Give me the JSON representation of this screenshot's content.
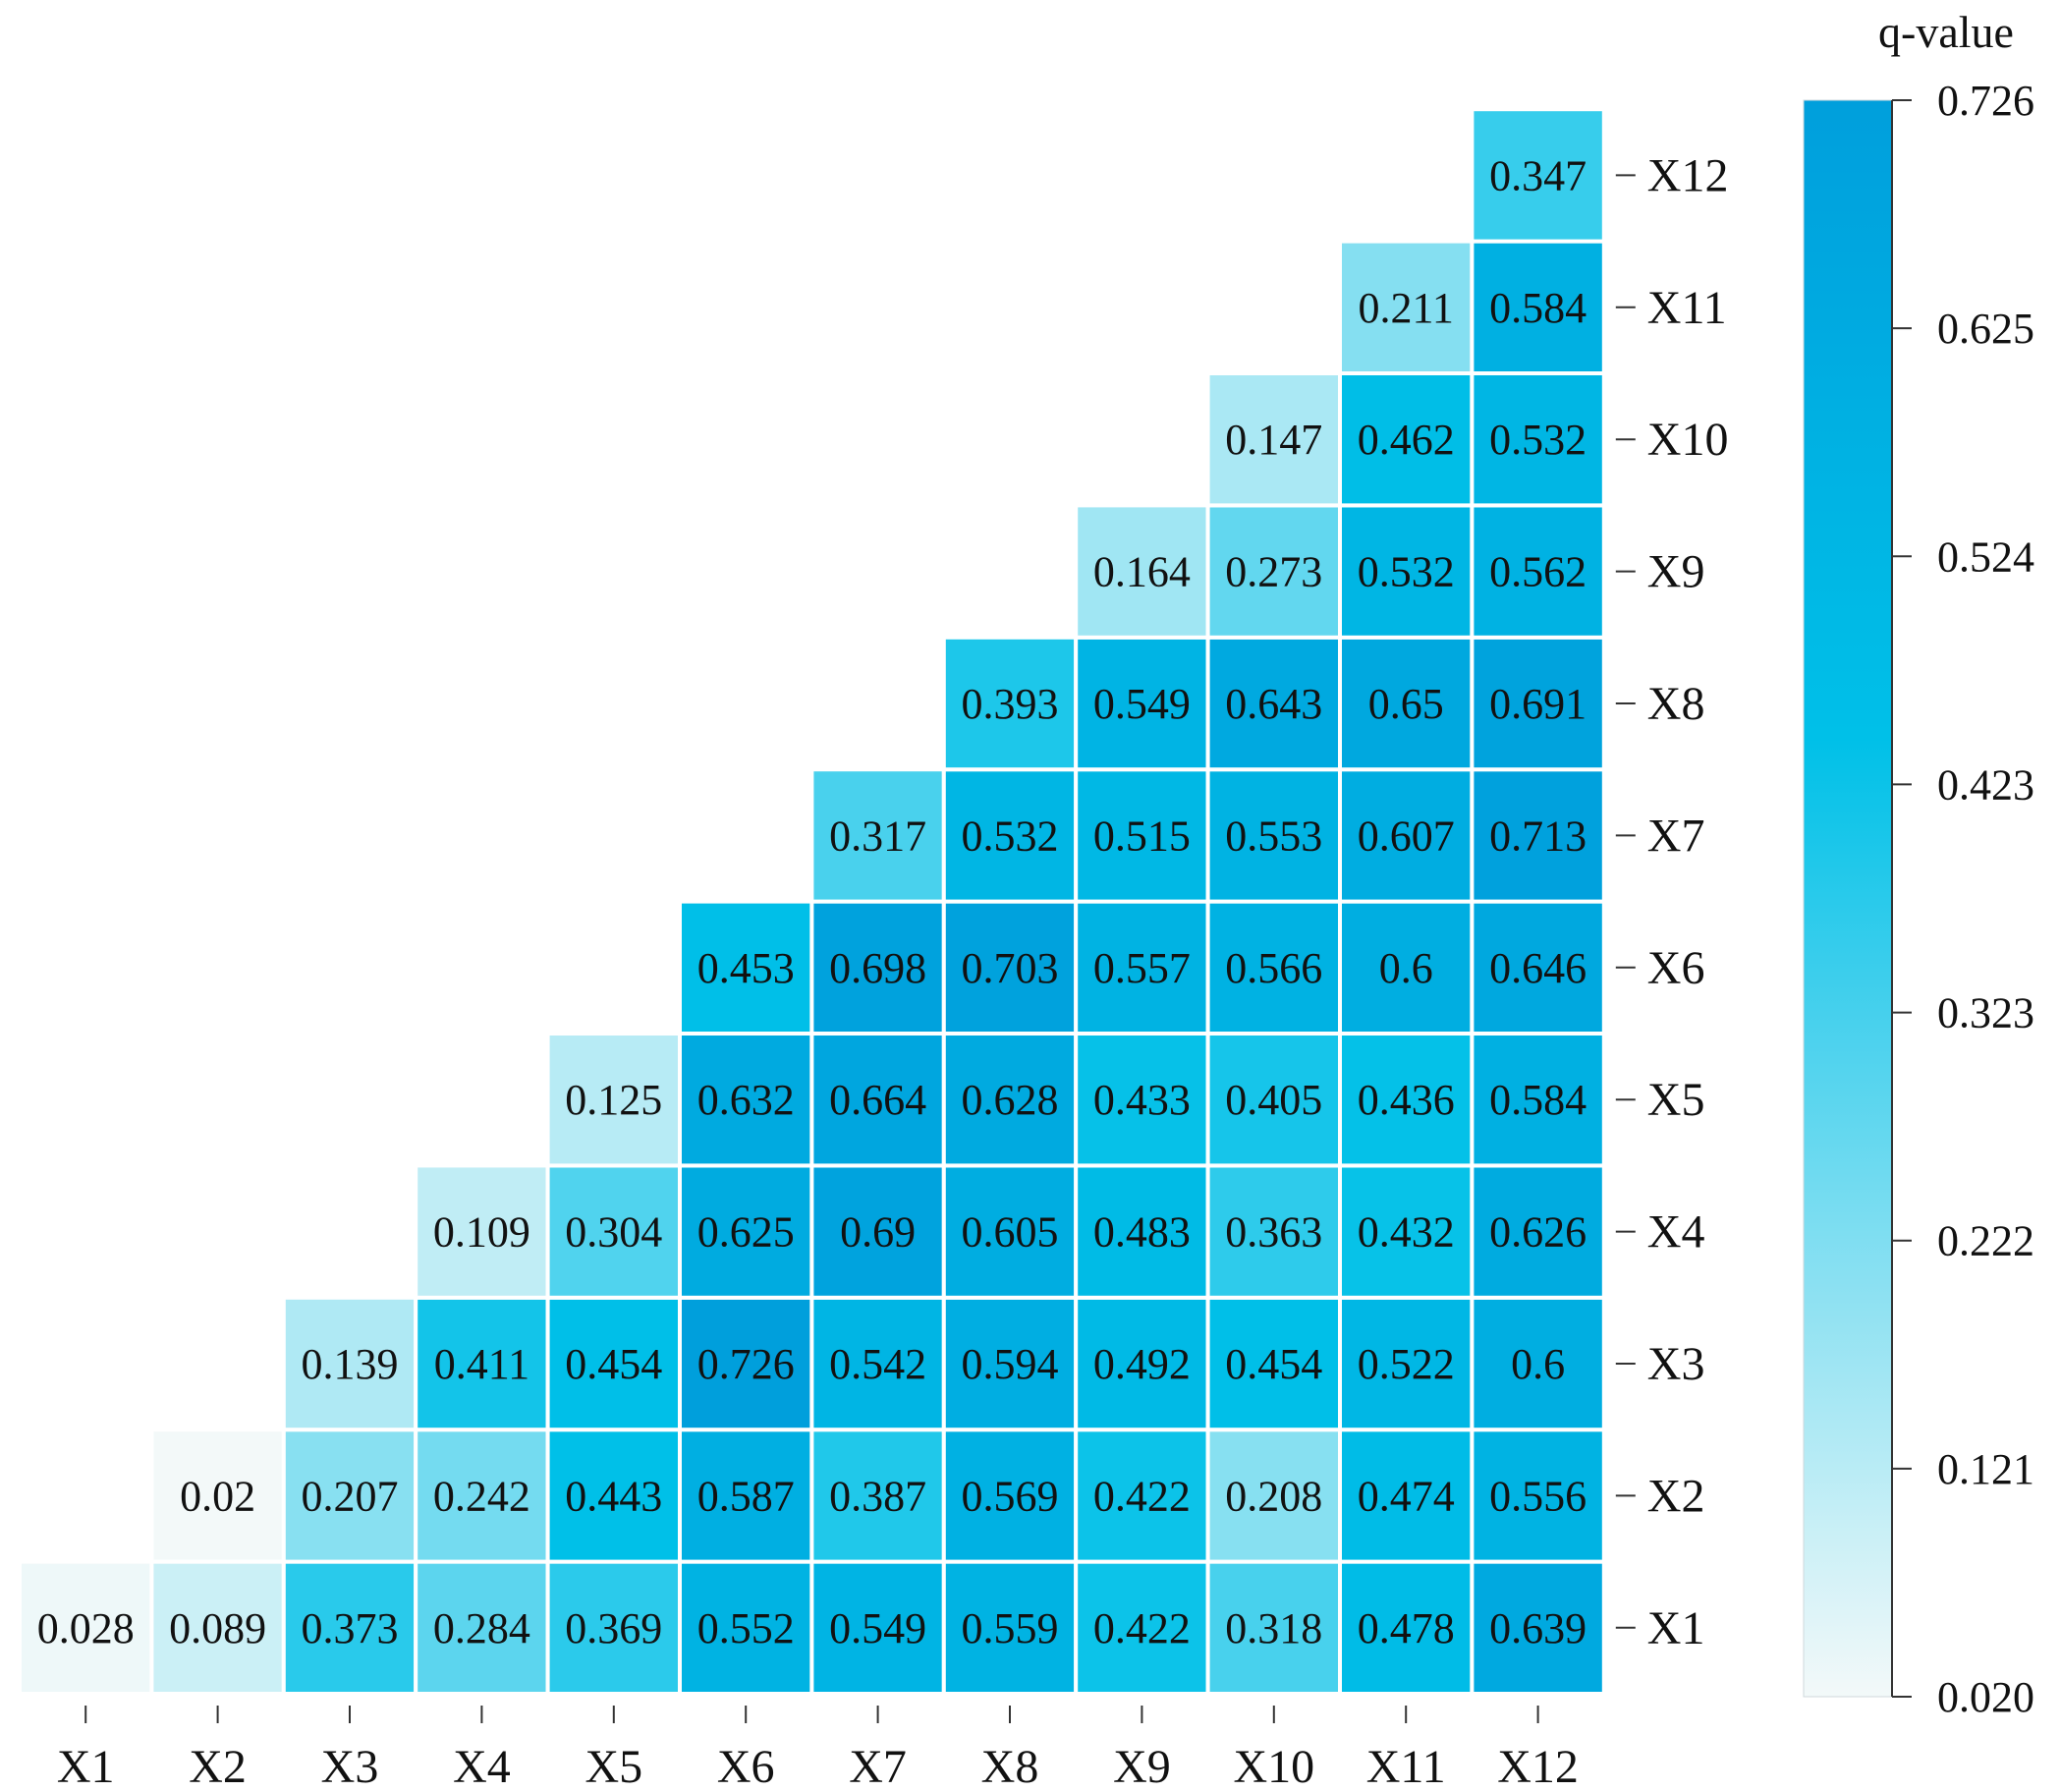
{
  "chart_data": {
    "type": "heatmap",
    "title": "",
    "xlabel": "",
    "ylabel": "",
    "x_categories": [
      "X1",
      "X2",
      "X3",
      "X4",
      "X5",
      "X6",
      "X7",
      "X8",
      "X9",
      "X10",
      "X11",
      "X12"
    ],
    "y_categories": [
      "X1",
      "X2",
      "X3",
      "X4",
      "X5",
      "X6",
      "X7",
      "X8",
      "X9",
      "X10",
      "X11",
      "X12"
    ],
    "triangle": "upper",
    "values": [
      {
        "row": "X1",
        "values": [
          0.028,
          0.089,
          0.373,
          0.284,
          0.369,
          0.552,
          0.549,
          0.559,
          0.422,
          0.318,
          0.478,
          0.639
        ]
      },
      {
        "row": "X2",
        "values": [
          null,
          0.02,
          0.207,
          0.242,
          0.443,
          0.587,
          0.387,
          0.569,
          0.422,
          0.208,
          0.474,
          0.556
        ]
      },
      {
        "row": "X3",
        "values": [
          null,
          null,
          0.139,
          0.411,
          0.454,
          0.726,
          0.542,
          0.594,
          0.492,
          0.454,
          0.522,
          0.6
        ]
      },
      {
        "row": "X4",
        "values": [
          null,
          null,
          null,
          0.109,
          0.304,
          0.625,
          0.69,
          0.605,
          0.483,
          0.363,
          0.432,
          0.626
        ]
      },
      {
        "row": "X5",
        "values": [
          null,
          null,
          null,
          null,
          0.125,
          0.632,
          0.664,
          0.628,
          0.433,
          0.405,
          0.436,
          0.584
        ]
      },
      {
        "row": "X6",
        "values": [
          null,
          null,
          null,
          null,
          null,
          0.453,
          0.698,
          0.703,
          0.557,
          0.566,
          0.6,
          0.646
        ]
      },
      {
        "row": "X7",
        "values": [
          null,
          null,
          null,
          null,
          null,
          null,
          0.317,
          0.532,
          0.515,
          0.553,
          0.607,
          0.713
        ]
      },
      {
        "row": "X8",
        "values": [
          null,
          null,
          null,
          null,
          null,
          null,
          null,
          0.393,
          0.549,
          0.643,
          0.65,
          0.691
        ]
      },
      {
        "row": "X9",
        "values": [
          null,
          null,
          null,
          null,
          null,
          null,
          null,
          null,
          0.164,
          0.273,
          0.532,
          0.562
        ]
      },
      {
        "row": "X10",
        "values": [
          null,
          null,
          null,
          null,
          null,
          null,
          null,
          null,
          null,
          0.147,
          0.462,
          0.532
        ]
      },
      {
        "row": "X11",
        "values": [
          null,
          null,
          null,
          null,
          null,
          null,
          null,
          null,
          null,
          null,
          0.211,
          0.584
        ]
      },
      {
        "row": "X12",
        "values": [
          null,
          null,
          null,
          null,
          null,
          null,
          null,
          null,
          null,
          null,
          null,
          0.347
        ]
      }
    ],
    "colorbar": {
      "title": "q-value",
      "min": 0.02,
      "max": 0.726,
      "ticks": [
        "0.726",
        "0.625",
        "0.524",
        "0.423",
        "0.323",
        "0.222",
        "0.121",
        "0.020"
      ],
      "colors": {
        "low": "#f3f9f9",
        "mid": "#00c0e8",
        "high": "#009fdc"
      }
    },
    "legend_position": "right",
    "grid": false
  }
}
